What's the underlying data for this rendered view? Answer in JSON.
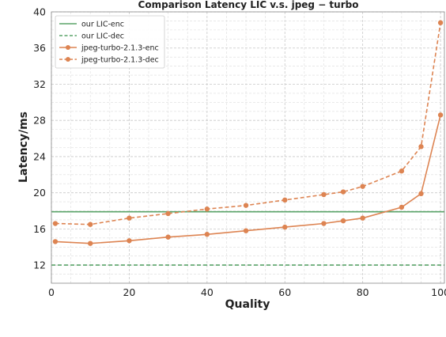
{
  "chart_data": {
    "type": "line",
    "title": "Comparison Latency LIC v.s. jpeg − turbo",
    "xlabel": "Quality",
    "ylabel": "Latency/ms",
    "xlim": [
      0,
      101
    ],
    "ylim": [
      10,
      40
    ],
    "xticks": [
      "0",
      "20",
      "40",
      "60",
      "80",
      "100"
    ],
    "yticks": [
      "12",
      "16",
      "20",
      "24",
      "28",
      "32",
      "36",
      "40"
    ],
    "grid": true,
    "legend_position": "top-left",
    "series": [
      {
        "name": "our LIC-enc",
        "color": "#5aa469",
        "style": "solid",
        "marker": false,
        "x": [
          0,
          101
        ],
        "y": [
          17.9,
          17.9
        ]
      },
      {
        "name": "our LIC-dec",
        "color": "#5aa469",
        "style": "dashed",
        "marker": false,
        "x": [
          0,
          101
        ],
        "y": [
          12.0,
          12.0
        ]
      },
      {
        "name": "jpeg-turbo-2.1.3-enc",
        "color": "#dd8452",
        "style": "solid",
        "marker": true,
        "x": [
          1,
          10,
          20,
          30,
          40,
          50,
          60,
          70,
          75,
          80,
          90,
          95,
          100
        ],
        "y": [
          14.6,
          14.4,
          14.7,
          15.1,
          15.4,
          15.8,
          16.2,
          16.6,
          16.9,
          17.2,
          18.4,
          19.9,
          28.6
        ]
      },
      {
        "name": "jpeg-turbo-2.1.3-dec",
        "color": "#dd8452",
        "style": "dashed",
        "marker": true,
        "x": [
          1,
          10,
          20,
          30,
          40,
          50,
          60,
          70,
          75,
          80,
          90,
          95,
          100
        ],
        "y": [
          16.6,
          16.5,
          17.2,
          17.7,
          18.2,
          18.6,
          19.2,
          19.8,
          20.1,
          20.7,
          22.4,
          25.1,
          38.8
        ]
      }
    ]
  }
}
